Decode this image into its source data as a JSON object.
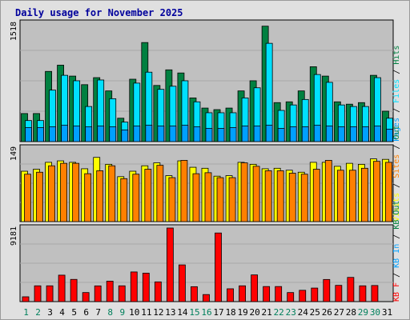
{
  "title": "Daily usage for November 2025",
  "colors": {
    "hits": "#008040",
    "files": "#00e0ff",
    "pages": "#00a0ff",
    "visits": "#ffff00",
    "sites": "#ff8000",
    "kb": "#ff0000",
    "weekend_label": "#00805c",
    "weekday_label": "#000000",
    "slash": "#000000"
  },
  "chart_data": [
    {
      "type": "bar",
      "panel": "top",
      "y_max_label": "1518",
      "ylim": [
        0,
        1518
      ],
      "categories": [
        "1",
        "2",
        "3",
        "4",
        "5",
        "6",
        "7",
        "8",
        "9",
        "10",
        "11",
        "12",
        "13",
        "14",
        "15",
        "16",
        "17",
        "18",
        "19",
        "20",
        "21",
        "22",
        "23",
        "24",
        "25",
        "26",
        "27",
        "28",
        "29",
        "30",
        "31"
      ],
      "weekend": [
        1,
        2,
        8,
        9,
        15,
        16,
        22,
        23,
        29,
        30
      ],
      "legend": [
        "Pages",
        "/",
        "Files",
        "/",
        "Hits"
      ],
      "series": [
        {
          "name": "Hits",
          "values": [
            360,
            360,
            900,
            980,
            840,
            730,
            820,
            650,
            300,
            800,
            1270,
            720,
            920,
            880,
            560,
            430,
            410,
            430,
            650,
            780,
            1480,
            500,
            510,
            650,
            960,
            840,
            510,
            480,
            500,
            850,
            390
          ]
        },
        {
          "name": "Files",
          "values": [
            270,
            270,
            660,
            850,
            780,
            450,
            790,
            550,
            250,
            750,
            890,
            670,
            710,
            780,
            510,
            370,
            370,
            370,
            560,
            690,
            1260,
            400,
            470,
            540,
            860,
            760,
            470,
            450,
            450,
            820,
            300
          ]
        },
        {
          "name": "Pages",
          "values": [
            180,
            180,
            190,
            210,
            200,
            190,
            200,
            190,
            150,
            200,
            210,
            200,
            200,
            210,
            190,
            170,
            170,
            180,
            200,
            200,
            210,
            170,
            190,
            190,
            210,
            200,
            190,
            190,
            190,
            200,
            160
          ]
        }
      ]
    },
    {
      "type": "bar",
      "panel": "middle",
      "y_max_label": "149",
      "ylim": [
        0,
        149
      ],
      "categories": [
        "1",
        "2",
        "3",
        "4",
        "5",
        "6",
        "7",
        "8",
        "9",
        "10",
        "11",
        "12",
        "13",
        "14",
        "15",
        "16",
        "17",
        "18",
        "19",
        "20",
        "21",
        "22",
        "23",
        "24",
        "25",
        "26",
        "27",
        "28",
        "29",
        "30",
        "31"
      ],
      "legend": [
        "Visits",
        "/",
        "Sites",
        "/",
        "Out"
      ],
      "series": [
        {
          "name": "Visits",
          "values": [
            102,
            106,
            120,
            123,
            120,
            107,
            130,
            116,
            91,
            102,
            113,
            119,
            93,
            123,
            110,
            108,
            92,
            93,
            120,
            116,
            107,
            108,
            104,
            100,
            120,
            120,
            112,
            118,
            116,
            127,
            126
          ]
        },
        {
          "name": "Sites",
          "values": [
            96,
            100,
            113,
            118,
            118,
            97,
            103,
            113,
            87,
            96,
            106,
            114,
            89,
            124,
            97,
            99,
            89,
            89,
            119,
            112,
            103,
            103,
            98,
            96,
            106,
            124,
            104,
            104,
            108,
            122,
            120
          ]
        }
      ]
    },
    {
      "type": "bar",
      "panel": "bottom",
      "y_max_label": "9181",
      "ylim": [
        0,
        9181
      ],
      "categories": [
        "1",
        "2",
        "3",
        "4",
        "5",
        "6",
        "7",
        "8",
        "9",
        "10",
        "11",
        "12",
        "13",
        "14",
        "15",
        "16",
        "17",
        "18",
        "19",
        "20",
        "21",
        "22",
        "23",
        "24",
        "25",
        "26",
        "27",
        "28",
        "29",
        "30",
        "31"
      ],
      "legend": [
        "KB",
        "F",
        "/",
        "KB",
        "In",
        "/",
        "KB",
        "Out"
      ],
      "series": [
        {
          "name": "KB F",
          "values": [
            600,
            1970,
            1970,
            3300,
            2770,
            1130,
            1960,
            2550,
            1970,
            3700,
            3550,
            2460,
            9181,
            4580,
            1860,
            880,
            8560,
            1600,
            1970,
            3330,
            1880,
            1880,
            1130,
            1410,
            1690,
            2760,
            2030,
            3020,
            1970,
            2010,
            0
          ]
        }
      ]
    }
  ]
}
